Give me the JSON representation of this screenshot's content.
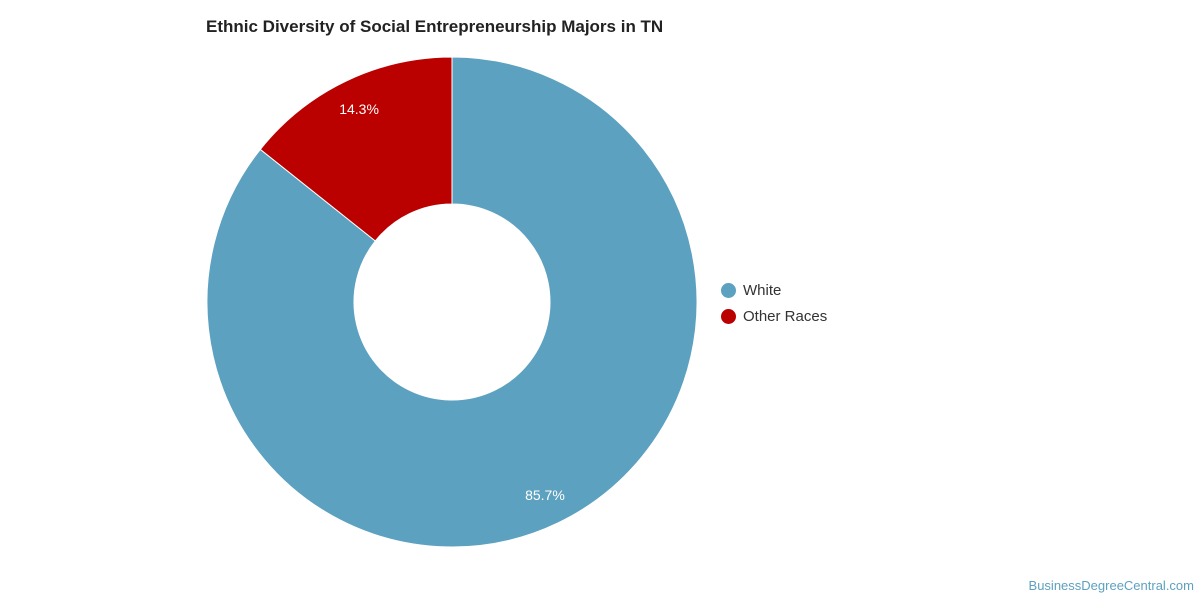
{
  "chart_data": {
    "type": "pie",
    "donut": true,
    "title": "Ethnic Diversity of Social Entrepreneurship Majors in TN",
    "slices": [
      {
        "label": "White",
        "value": 85.7,
        "data_label": "85.7%",
        "color": "#5ca1bf"
      },
      {
        "label": "Other Races",
        "value": 14.3,
        "data_label": "14.3%",
        "color": "#bb0000"
      }
    ],
    "legend_position": "right"
  },
  "credit": "BusinessDegreeCentral.com"
}
